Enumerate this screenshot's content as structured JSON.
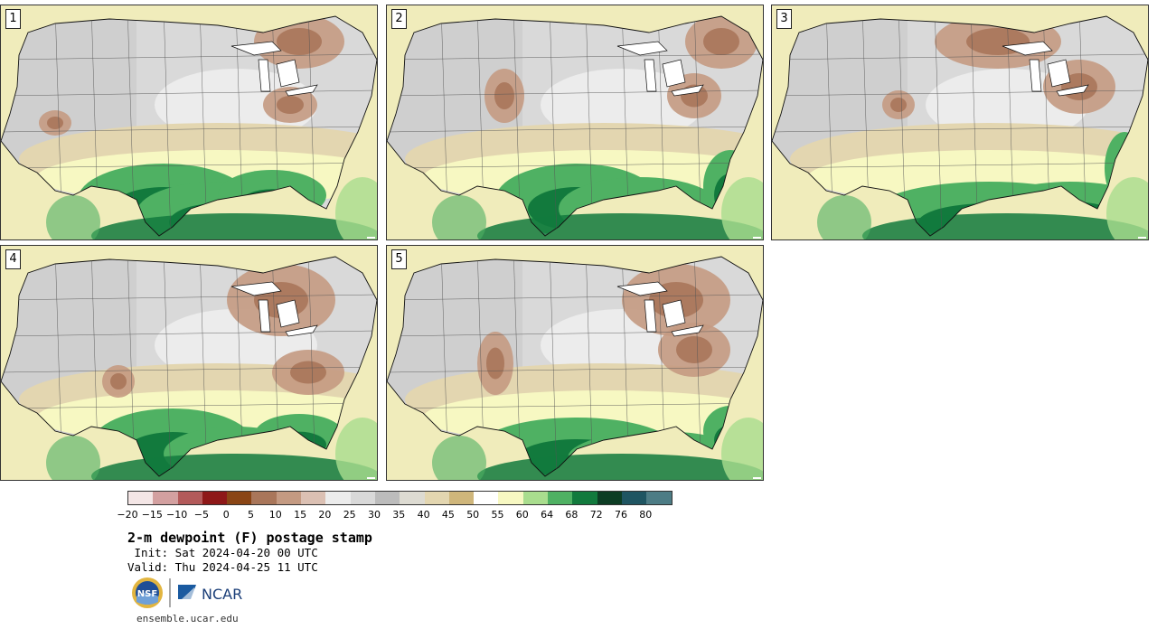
{
  "panels": [
    {
      "label": "1"
    },
    {
      "label": "2"
    },
    {
      "label": "3"
    },
    {
      "label": "4"
    },
    {
      "label": "5"
    }
  ],
  "colorbar": {
    "colors": [
      "#f4e6e6",
      "#d3a0a0",
      "#b35a5a",
      "#8e1818",
      "#8a4515",
      "#a9765a",
      "#c49a82",
      "#dbc0b3",
      "#ececec",
      "#d9d9d9",
      "#bcbcbc",
      "#dddbd2",
      "#e3d6b0",
      "#cfb67b",
      "#ffffff",
      "#f7f8c2",
      "#a9dd8e",
      "#4fb163",
      "#127a3d",
      "#0d3d24",
      "#1f5562",
      "#4d7c85"
    ],
    "tick_labels": [
      "−20",
      "−15",
      "−10",
      "−5",
      "0",
      "5",
      "10",
      "15",
      "20",
      "25",
      "30",
      "35",
      "40",
      "45",
      "50",
      "55",
      "60",
      "64",
      "68",
      "72",
      "76",
      "80"
    ]
  },
  "title": "2-m dewpoint (F) postage stamp",
  "init": " Init: Sat 2024-04-20 00 UTC",
  "valid": "Valid: Thu 2024-04-25 11 UTC",
  "logos": {
    "left": "NSF",
    "right": "NCAR"
  },
  "site": "ensemble.ucar.edu"
}
